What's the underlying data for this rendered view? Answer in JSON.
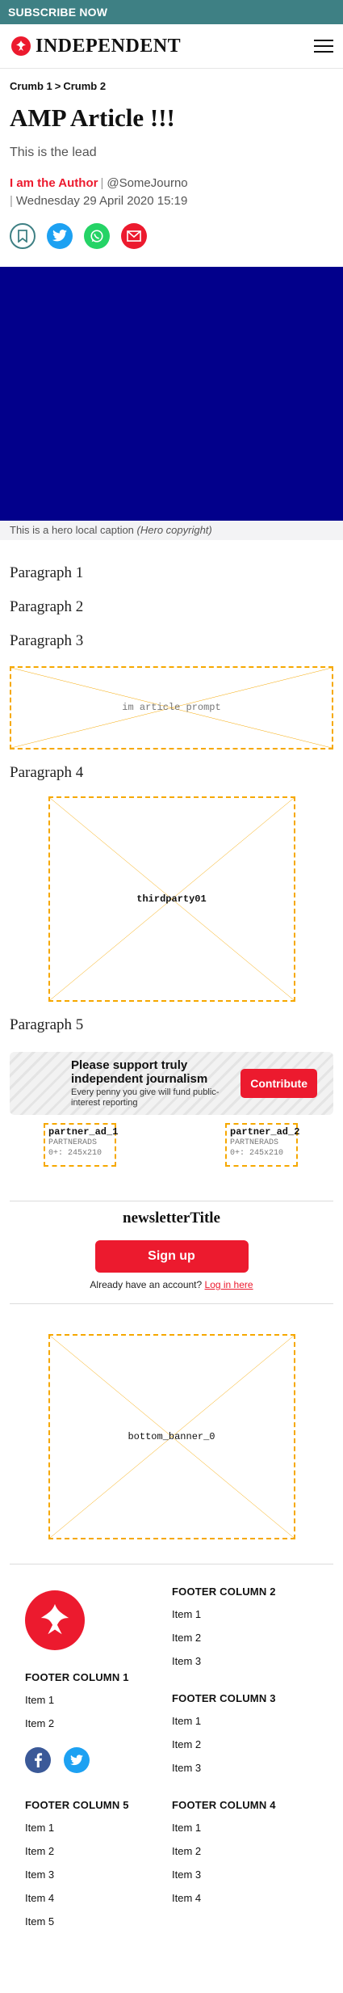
{
  "subscribe": {
    "label": "SUBSCRIBE NOW"
  },
  "header": {
    "brand": "INDEPENDENT",
    "menu_icon": "hamburger-menu-icon",
    "logo_icon": "eagle-icon"
  },
  "breadcrumb": {
    "items": [
      "Crumb 1",
      "Crumb 2"
    ],
    "separator": ">"
  },
  "article": {
    "title": "AMP Article !!!",
    "lead": "This is the lead",
    "author": "I am the Author",
    "handle": "@SomeJourno",
    "date": "Wednesday 29 April 2020 15:19"
  },
  "share": [
    "bookmark-icon",
    "twitter-icon",
    "whatsapp-icon",
    "email-icon"
  ],
  "hero": {
    "caption": "This is a hero local caption",
    "copyright": "(Hero copyright)",
    "color": "#02008b"
  },
  "paragraphs": [
    "Paragraph 1",
    "Paragraph 2",
    "Paragraph 3",
    "Paragraph 4",
    "Paragraph 5"
  ],
  "placeholders": {
    "prompt": "im article prompt",
    "thirdparty": "thirdparty01",
    "bottom_banner": "bottom_banner_0"
  },
  "support": {
    "title": "Please support truly independent journalism",
    "subtitle": "Every penny you give will fund public-interest reporting",
    "button": "Contribute"
  },
  "partners": [
    {
      "name": "partner_ad_1",
      "network": "PARTNERADS",
      "size": "0+: 245x210"
    },
    {
      "name": "partner_ad_2",
      "network": "PARTNERADS",
      "size": "0+: 245x210"
    }
  ],
  "newsletter": {
    "title": "newsletterTitle",
    "button": "Sign up",
    "account_text": "Already have an account?",
    "login": "Log in here"
  },
  "footer": {
    "col1": {
      "heading": "FOOTER COLUMN 1",
      "items": [
        "Item 1",
        "Item 2"
      ]
    },
    "col2": {
      "heading": "FOOTER COLUMN 2",
      "items": [
        "Item 1",
        "Item 2",
        "Item 3"
      ]
    },
    "col3": {
      "heading": "FOOTER COLUMN 3",
      "items": [
        "Item 1",
        "Item 2",
        "Item 3"
      ]
    },
    "col4": {
      "heading": "FOOTER COLUMN 4",
      "items": [
        "Item 1",
        "Item 2",
        "Item 3",
        "Item 4"
      ]
    },
    "col5": {
      "heading": "FOOTER COLUMN 5",
      "items": [
        "Item 1",
        "Item 2",
        "Item 3",
        "Item 4",
        "Item 5"
      ]
    },
    "social": [
      "facebook-icon",
      "twitter-icon"
    ]
  },
  "colors": {
    "brand": "#ec1a2e",
    "subscribe_bar": "#3e8084",
    "placeholder_border": "#f6a800",
    "twitter": "#1da1f2",
    "whatsapp": "#25d366",
    "facebook": "#3b5998",
    "bookmark": "#3e8084"
  }
}
